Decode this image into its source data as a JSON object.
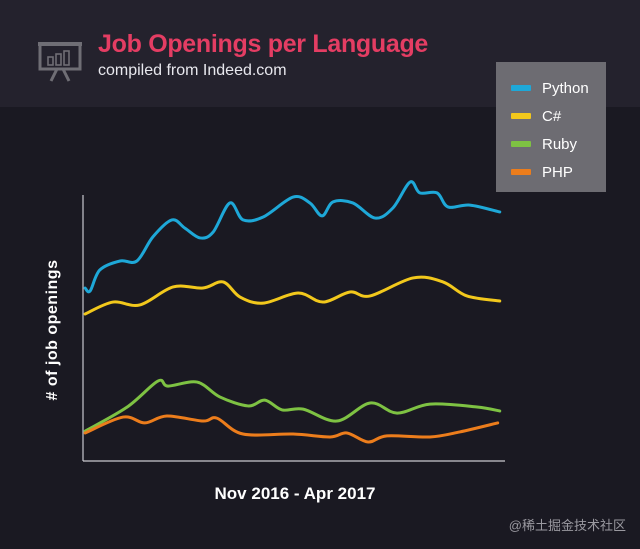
{
  "header": {
    "title": "Job Openings per Language",
    "subtitle": "compiled from Indeed.com",
    "icon": "presentation-chart-icon"
  },
  "watermark": "@稀土掘金技术社区",
  "chart_data": {
    "type": "line",
    "title": "Job Openings per Language",
    "subtitle": "compiled from Indeed.com",
    "xlabel": "Nov 2016 - Apr 2017",
    "ylabel": "# of job openings",
    "x_range": "Nov 2016 - Apr 2017",
    "y_ticks": "none",
    "grid": false,
    "legend_position": "top-right",
    "note_units": "no numeric scale printed; values are relative estimates (0-100 of axis height), x is relative position in time range (0-100)",
    "series": [
      {
        "name": "Python",
        "color": "#1ea8d8",
        "points": [
          [
            0.5,
            64.9
          ],
          [
            1.7,
            63.8
          ],
          [
            4,
            71.7
          ],
          [
            8.8,
            75.1
          ],
          [
            12.8,
            75.1
          ],
          [
            16.6,
            84.2
          ],
          [
            21.1,
            90.6
          ],
          [
            24.2,
            87.5
          ],
          [
            27.8,
            83.8
          ],
          [
            30.9,
            86.0
          ],
          [
            34.9,
            97.0
          ],
          [
            38,
            90.6
          ],
          [
            42.8,
            91.7
          ],
          [
            49.9,
            99.2
          ],
          [
            53.9,
            97.0
          ],
          [
            56.8,
            92.1
          ],
          [
            59.4,
            97.4
          ],
          [
            64.1,
            97.0
          ],
          [
            69.4,
            91.3
          ],
          [
            73.6,
            95.1
          ],
          [
            77.7,
            104.9
          ],
          [
            80,
            100.8
          ],
          [
            84.1,
            100.8
          ],
          [
            86.7,
            95.5
          ],
          [
            91.9,
            96.2
          ],
          [
            99,
            93.6
          ]
        ]
      },
      {
        "name": "C#",
        "color": "#f2c81c",
        "points": [
          [
            0.5,
            55.1
          ],
          [
            7.1,
            59.6
          ],
          [
            13.5,
            58.5
          ],
          [
            21.4,
            65.3
          ],
          [
            28.5,
            64.9
          ],
          [
            33.3,
            67.2
          ],
          [
            37.3,
            61.5
          ],
          [
            42.8,
            59.2
          ],
          [
            51.1,
            63.0
          ],
          [
            57,
            59.6
          ],
          [
            63.4,
            63.4
          ],
          [
            68.2,
            61.9
          ],
          [
            78.4,
            68.7
          ],
          [
            85.5,
            67.2
          ],
          [
            91.2,
            61.9
          ],
          [
            99,
            60.0
          ]
        ]
      },
      {
        "name": "Ruby",
        "color": "#7ec243",
        "points": [
          [
            0.5,
            10.9
          ],
          [
            10.5,
            20.0
          ],
          [
            17.8,
            29.8
          ],
          [
            20.2,
            27.9
          ],
          [
            27.1,
            29.4
          ],
          [
            32.5,
            23.8
          ],
          [
            39.2,
            20.4
          ],
          [
            43.2,
            22.6
          ],
          [
            47.3,
            18.9
          ],
          [
            52.3,
            19.2
          ],
          [
            60.3,
            14.7
          ],
          [
            68.2,
            21.5
          ],
          [
            74.6,
            17.7
          ],
          [
            82.4,
            21.1
          ],
          [
            93.6,
            20.0
          ],
          [
            99,
            18.5
          ]
        ]
      },
      {
        "name": "PHP",
        "color": "#ec7d1c",
        "points": [
          [
            0.5,
            10.2
          ],
          [
            9.5,
            16.2
          ],
          [
            14.7,
            14.0
          ],
          [
            19.9,
            16.6
          ],
          [
            28.5,
            14.7
          ],
          [
            31.8,
            15.8
          ],
          [
            38,
            9.8
          ],
          [
            49.9,
            9.8
          ],
          [
            58.7,
            8.7
          ],
          [
            62.7,
            10.2
          ],
          [
            67.7,
            6.8
          ],
          [
            72.2,
            9.1
          ],
          [
            82.4,
            8.7
          ],
          [
            89.5,
            10.6
          ],
          [
            98.5,
            14.0
          ]
        ]
      }
    ]
  }
}
